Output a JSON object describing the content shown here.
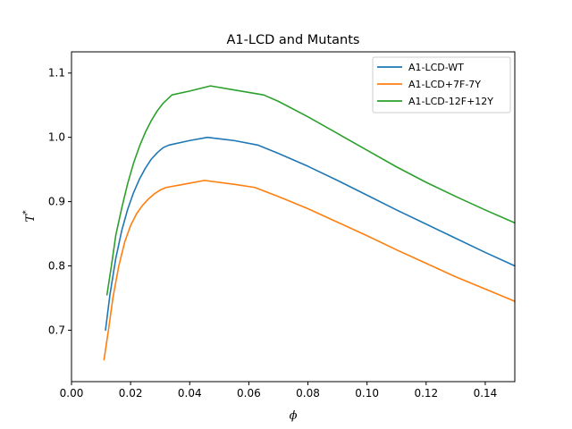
{
  "chart_data": {
    "type": "line",
    "title": "A1-LCD and Mutants",
    "xlabel": "ϕ",
    "ylabel": "T",
    "ylabel_superscript": "*",
    "xlim": [
      0.0,
      0.15
    ],
    "ylim": [
      0.62,
      1.133
    ],
    "xticks": [
      "0.00",
      "0.02",
      "0.04",
      "0.06",
      "0.08",
      "0.10",
      "0.12",
      "0.14"
    ],
    "xtick_values": [
      0.0,
      0.02,
      0.04,
      0.06,
      0.08,
      0.1,
      0.12,
      0.14
    ],
    "yticks": [
      "0.7",
      "0.8",
      "0.9",
      "1.0",
      "1.1"
    ],
    "ytick_values": [
      0.7,
      0.8,
      0.9,
      1.0,
      1.1
    ],
    "grid": false,
    "legend_position": "top-right",
    "series": [
      {
        "name": "A1-LCD-WT",
        "color": "#1f77b4",
        "points": [
          [
            0.0115,
            0.7
          ],
          [
            0.013,
            0.755
          ],
          [
            0.015,
            0.812
          ],
          [
            0.017,
            0.855
          ],
          [
            0.019,
            0.888
          ],
          [
            0.021,
            0.914
          ],
          [
            0.023,
            0.935
          ],
          [
            0.025,
            0.952
          ],
          [
            0.027,
            0.966
          ],
          [
            0.029,
            0.976
          ],
          [
            0.031,
            0.984
          ],
          [
            0.033,
            0.988
          ],
          [
            0.04,
            0.995
          ],
          [
            0.046,
            1.0
          ],
          [
            0.055,
            0.995
          ],
          [
            0.063,
            0.988
          ],
          [
            0.07,
            0.975
          ],
          [
            0.08,
            0.955
          ],
          [
            0.09,
            0.933
          ],
          [
            0.1,
            0.91
          ],
          [
            0.11,
            0.887
          ],
          [
            0.12,
            0.865
          ],
          [
            0.13,
            0.843
          ],
          [
            0.14,
            0.821
          ],
          [
            0.15,
            0.8
          ]
        ]
      },
      {
        "name": "A1-LCD+7F-7Y",
        "color": "#ff7f0e",
        "points": [
          [
            0.011,
            0.654
          ],
          [
            0.0125,
            0.7
          ],
          [
            0.014,
            0.75
          ],
          [
            0.016,
            0.8
          ],
          [
            0.018,
            0.837
          ],
          [
            0.02,
            0.863
          ],
          [
            0.022,
            0.881
          ],
          [
            0.024,
            0.894
          ],
          [
            0.026,
            0.904
          ],
          [
            0.028,
            0.912
          ],
          [
            0.03,
            0.918
          ],
          [
            0.032,
            0.922
          ],
          [
            0.038,
            0.927
          ],
          [
            0.045,
            0.933
          ],
          [
            0.055,
            0.927
          ],
          [
            0.062,
            0.922
          ],
          [
            0.07,
            0.908
          ],
          [
            0.08,
            0.889
          ],
          [
            0.09,
            0.868
          ],
          [
            0.1,
            0.847
          ],
          [
            0.11,
            0.825
          ],
          [
            0.12,
            0.804
          ],
          [
            0.13,
            0.783
          ],
          [
            0.14,
            0.764
          ],
          [
            0.15,
            0.745
          ]
        ]
      },
      {
        "name": "A1-LCD-12F+12Y",
        "color": "#2ca02c",
        "points": [
          [
            0.012,
            0.755
          ],
          [
            0.0135,
            0.8
          ],
          [
            0.015,
            0.848
          ],
          [
            0.017,
            0.89
          ],
          [
            0.019,
            0.928
          ],
          [
            0.021,
            0.96
          ],
          [
            0.023,
            0.986
          ],
          [
            0.025,
            1.008
          ],
          [
            0.027,
            1.026
          ],
          [
            0.029,
            1.041
          ],
          [
            0.031,
            1.053
          ],
          [
            0.034,
            1.066
          ],
          [
            0.04,
            1.072
          ],
          [
            0.047,
            1.08
          ],
          [
            0.056,
            1.073
          ],
          [
            0.065,
            1.066
          ],
          [
            0.07,
            1.056
          ],
          [
            0.08,
            1.032
          ],
          [
            0.09,
            1.006
          ],
          [
            0.1,
            0.98
          ],
          [
            0.11,
            0.954
          ],
          [
            0.12,
            0.93
          ],
          [
            0.13,
            0.908
          ],
          [
            0.14,
            0.887
          ],
          [
            0.15,
            0.867
          ]
        ]
      }
    ]
  }
}
